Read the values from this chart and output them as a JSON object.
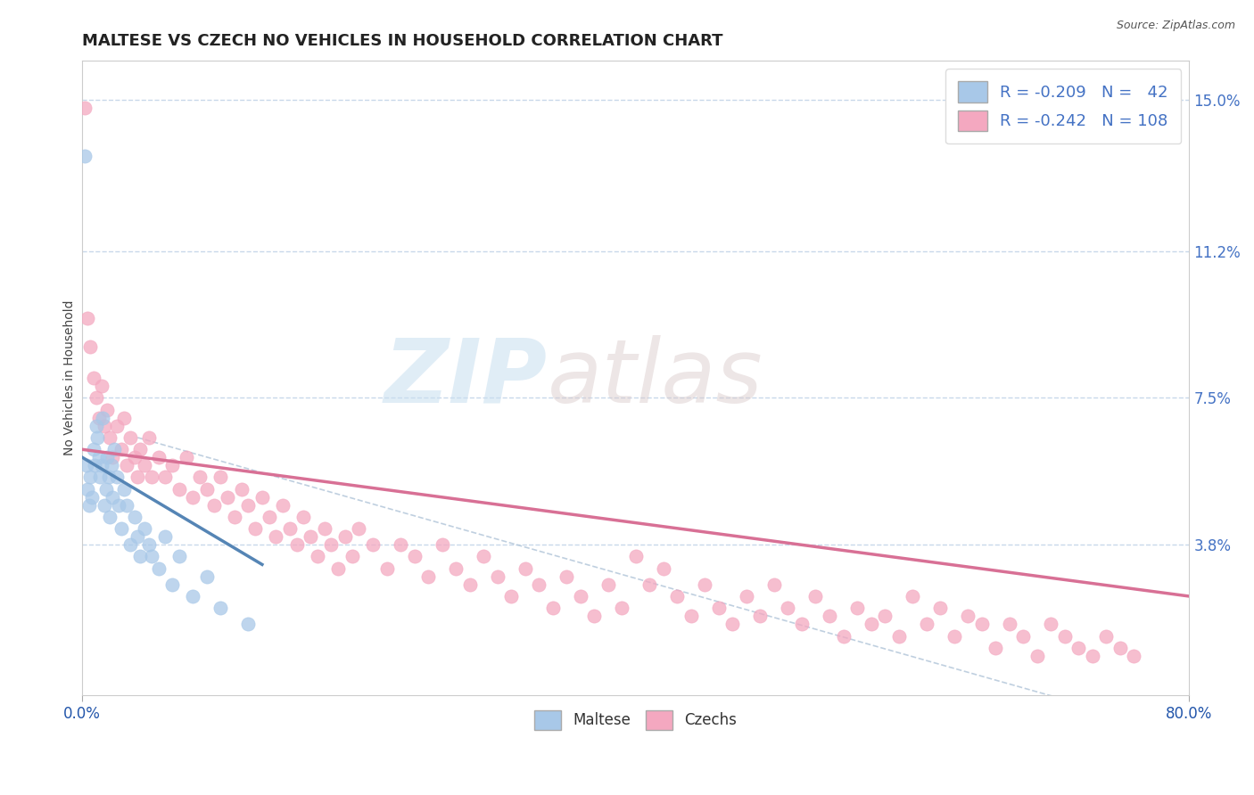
{
  "title": "MALTESE VS CZECH NO VEHICLES IN HOUSEHOLD CORRELATION CHART",
  "source_text": "Source: ZipAtlas.com",
  "ylabel": "No Vehicles in Household",
  "xlim": [
    0.0,
    0.8
  ],
  "ylim": [
    0.0,
    0.16
  ],
  "xtick_labels": [
    "0.0%",
    "80.0%"
  ],
  "ytick_right_labels": [
    "3.8%",
    "7.5%",
    "11.2%",
    "15.0%"
  ],
  "ytick_right_values": [
    0.038,
    0.075,
    0.112,
    0.15
  ],
  "legend_r1": "R = -0.209",
  "legend_n1": "N =  42",
  "legend_r2": "R = -0.242",
  "legend_n2": "N = 108",
  "color_maltese": "#a8c8e8",
  "color_czechs": "#f4a8c0",
  "color_maltese_line": "#5585b5",
  "color_czechs_line": "#d87095",
  "watermark_zip": "ZIP",
  "watermark_atlas": "atlas",
  "background_color": "#ffffff",
  "grid_color": "#c8d8ea",
  "title_fontsize": 13,
  "axis_fontsize": 11,
  "legend_fontsize": 13,
  "maltese_x": [
    0.002,
    0.003,
    0.004,
    0.005,
    0.006,
    0.007,
    0.008,
    0.009,
    0.01,
    0.011,
    0.012,
    0.013,
    0.014,
    0.015,
    0.016,
    0.017,
    0.018,
    0.019,
    0.02,
    0.021,
    0.022,
    0.023,
    0.025,
    0.026,
    0.028,
    0.03,
    0.032,
    0.035,
    0.038,
    0.04,
    0.042,
    0.045,
    0.048,
    0.05,
    0.055,
    0.06,
    0.065,
    0.07,
    0.08,
    0.09,
    0.1,
    0.12
  ],
  "maltese_y": [
    0.136,
    0.058,
    0.052,
    0.048,
    0.055,
    0.05,
    0.062,
    0.058,
    0.068,
    0.065,
    0.06,
    0.055,
    0.058,
    0.07,
    0.048,
    0.052,
    0.06,
    0.055,
    0.045,
    0.058,
    0.05,
    0.062,
    0.055,
    0.048,
    0.042,
    0.052,
    0.048,
    0.038,
    0.045,
    0.04,
    0.035,
    0.042,
    0.038,
    0.035,
    0.032,
    0.04,
    0.028,
    0.035,
    0.025,
    0.03,
    0.022,
    0.018
  ],
  "czechs_x": [
    0.002,
    0.004,
    0.006,
    0.008,
    0.01,
    0.012,
    0.014,
    0.016,
    0.018,
    0.02,
    0.022,
    0.025,
    0.028,
    0.03,
    0.032,
    0.035,
    0.038,
    0.04,
    0.042,
    0.045,
    0.048,
    0.05,
    0.055,
    0.06,
    0.065,
    0.07,
    0.075,
    0.08,
    0.085,
    0.09,
    0.095,
    0.1,
    0.105,
    0.11,
    0.115,
    0.12,
    0.125,
    0.13,
    0.135,
    0.14,
    0.145,
    0.15,
    0.155,
    0.16,
    0.165,
    0.17,
    0.175,
    0.18,
    0.185,
    0.19,
    0.195,
    0.2,
    0.21,
    0.22,
    0.23,
    0.24,
    0.25,
    0.26,
    0.27,
    0.28,
    0.29,
    0.3,
    0.31,
    0.32,
    0.33,
    0.34,
    0.35,
    0.36,
    0.37,
    0.38,
    0.39,
    0.4,
    0.41,
    0.42,
    0.43,
    0.44,
    0.45,
    0.46,
    0.47,
    0.48,
    0.49,
    0.5,
    0.51,
    0.52,
    0.53,
    0.54,
    0.55,
    0.56,
    0.57,
    0.58,
    0.59,
    0.6,
    0.61,
    0.62,
    0.63,
    0.64,
    0.65,
    0.66,
    0.67,
    0.68,
    0.69,
    0.7,
    0.71,
    0.72,
    0.73,
    0.74,
    0.75,
    0.76
  ],
  "czechs_y": [
    0.148,
    0.095,
    0.088,
    0.08,
    0.075,
    0.07,
    0.078,
    0.068,
    0.072,
    0.065,
    0.06,
    0.068,
    0.062,
    0.07,
    0.058,
    0.065,
    0.06,
    0.055,
    0.062,
    0.058,
    0.065,
    0.055,
    0.06,
    0.055,
    0.058,
    0.052,
    0.06,
    0.05,
    0.055,
    0.052,
    0.048,
    0.055,
    0.05,
    0.045,
    0.052,
    0.048,
    0.042,
    0.05,
    0.045,
    0.04,
    0.048,
    0.042,
    0.038,
    0.045,
    0.04,
    0.035,
    0.042,
    0.038,
    0.032,
    0.04,
    0.035,
    0.042,
    0.038,
    0.032,
    0.038,
    0.035,
    0.03,
    0.038,
    0.032,
    0.028,
    0.035,
    0.03,
    0.025,
    0.032,
    0.028,
    0.022,
    0.03,
    0.025,
    0.02,
    0.028,
    0.022,
    0.035,
    0.028,
    0.032,
    0.025,
    0.02,
    0.028,
    0.022,
    0.018,
    0.025,
    0.02,
    0.028,
    0.022,
    0.018,
    0.025,
    0.02,
    0.015,
    0.022,
    0.018,
    0.02,
    0.015,
    0.025,
    0.018,
    0.022,
    0.015,
    0.02,
    0.018,
    0.012,
    0.018,
    0.015,
    0.01,
    0.018,
    0.015,
    0.012,
    0.01,
    0.015,
    0.012,
    0.01
  ]
}
